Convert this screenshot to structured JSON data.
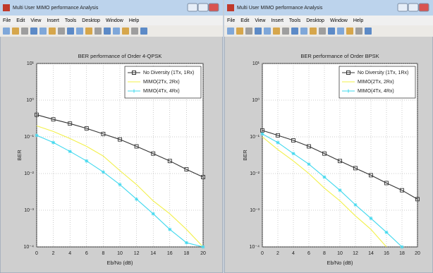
{
  "windows": [
    {
      "title": "Multi User MIMO performance Analysis",
      "menus": [
        "File",
        "Edit",
        "View",
        "Insert",
        "Tools",
        "Desktop",
        "Window",
        "Help"
      ]
    },
    {
      "title": "Multi User MIMO performance Analysis",
      "menus": [
        "File",
        "Edit",
        "View",
        "Insert",
        "Tools",
        "Desktop",
        "Window",
        "Help"
      ]
    }
  ],
  "chart_data": [
    {
      "type": "line",
      "title": "BER performance of Order 4-QPSK",
      "x_label": "Eb/No (dB)",
      "y_label": "BER",
      "x": [
        0,
        2,
        4,
        6,
        8,
        10,
        12,
        14,
        16,
        18,
        20
      ],
      "series": [
        {
          "name": "No Diversity (1Tx, 1Rx)",
          "color": "#333333",
          "marker": "square",
          "values": [
            0.4,
            0.3,
            0.23,
            0.17,
            0.12,
            0.085,
            0.055,
            0.035,
            0.022,
            0.013,
            0.008
          ]
        },
        {
          "name": "MIMO(2Tx, 2Rx)",
          "color": "#f2f04a",
          "marker": "none",
          "values": [
            0.2,
            0.14,
            0.09,
            0.055,
            0.03,
            0.012,
            0.005,
            0.0018,
            0.0008,
            0.0003,
            0.0001
          ]
        },
        {
          "name": "MIMO(4Tx, 4Rx)",
          "color": "#3fd8ee",
          "marker": "star",
          "values": [
            0.11,
            0.07,
            0.04,
            0.022,
            0.011,
            0.005,
            0.002,
            0.0008,
            0.0003,
            0.00013,
            0.0001
          ]
        }
      ],
      "xlim": [
        0,
        20
      ],
      "xticks": [
        0,
        2,
        4,
        6,
        8,
        10,
        12,
        14,
        16,
        18,
        20
      ],
      "ylim": [
        0.0001,
        10
      ],
      "log_y": true,
      "yticks": [
        {
          "value": 0.0001,
          "label": "10⁻⁴"
        },
        {
          "value": 0.001,
          "label": "10⁻³"
        },
        {
          "value": 0.01,
          "label": "10⁻²"
        },
        {
          "value": 0.1,
          "label": "10⁻¹"
        },
        {
          "value": 1,
          "label": "10⁰"
        },
        {
          "value": 10,
          "label": "10¹"
        }
      ],
      "grid": true,
      "legend": "upper right"
    },
    {
      "type": "line",
      "title": "BER performance of Order BPSK",
      "x_label": "Eb/No (dB)",
      "y_label": "BER",
      "x": [
        0,
        2,
        4,
        6,
        8,
        10,
        12,
        14,
        16,
        18,
        20
      ],
      "series": [
        {
          "name": "No Diversity (1Tx, 1Rx)",
          "color": "#333333",
          "marker": "square",
          "values": [
            0.15,
            0.11,
            0.08,
            0.055,
            0.035,
            0.022,
            0.014,
            0.009,
            0.0055,
            0.0035,
            0.002
          ]
        },
        {
          "name": "MIMO(2Tx, 2Rx)",
          "color": "#f2f04a",
          "marker": "none",
          "values": [
            0.1,
            0.045,
            0.022,
            0.01,
            0.004,
            0.0018,
            0.0007,
            0.0003,
            0.0001,
            null,
            null
          ]
        },
        {
          "name": "MIMO(4Tx, 4Rx)",
          "color": "#3fd8ee",
          "marker": "star",
          "values": [
            0.12,
            0.07,
            0.035,
            0.018,
            0.008,
            0.0035,
            0.0014,
            0.0006,
            0.00025,
            0.0001,
            null
          ]
        }
      ],
      "xlim": [
        0,
        20
      ],
      "xticks": [
        0,
        2,
        4,
        6,
        8,
        10,
        12,
        14,
        16,
        18,
        20
      ],
      "ylim": [
        0.0001,
        10
      ],
      "log_y": true,
      "yticks": [
        {
          "value": 0.0001,
          "label": "10⁻⁴"
        },
        {
          "value": 0.001,
          "label": "10⁻³"
        },
        {
          "value": 0.01,
          "label": "10⁻²"
        },
        {
          "value": 0.1,
          "label": "10⁻¹"
        },
        {
          "value": 1,
          "label": "10⁰"
        },
        {
          "value": 10,
          "label": "10¹"
        }
      ],
      "grid": true,
      "legend": "upper right"
    }
  ]
}
